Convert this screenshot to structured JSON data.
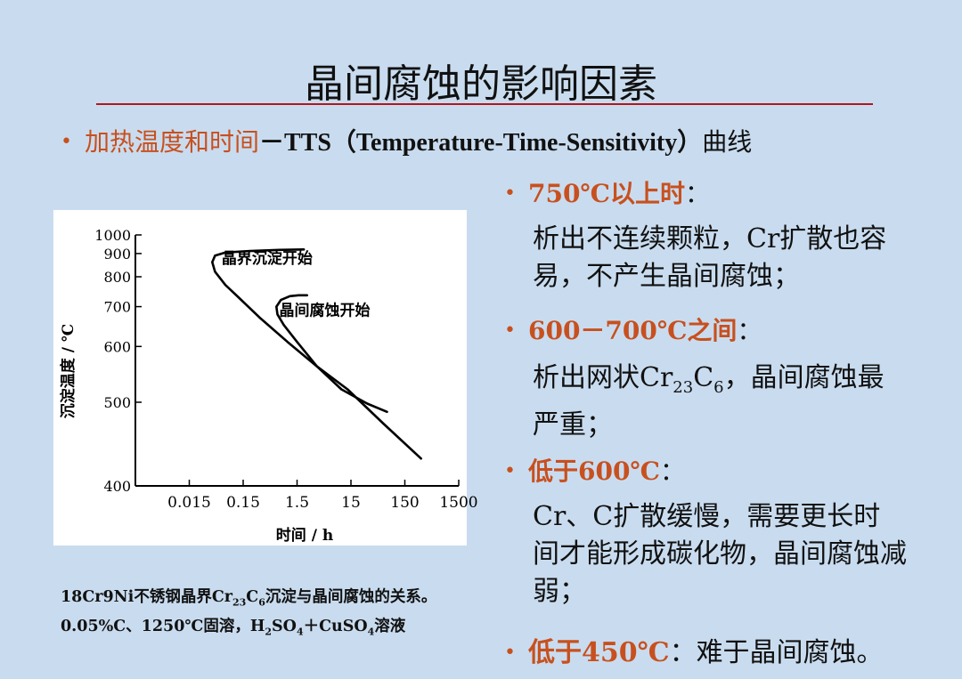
{
  "title": "晶间腐蚀的影响因素",
  "subtitle": {
    "bullet": "•",
    "red": "加热温度和时间",
    "black": "－TTS（Temperature-Time-Sensitivity）",
    "tail": "曲线"
  },
  "items": [
    {
      "bullet": "•",
      "head": "750℃以上时",
      "colon": "：",
      "text": "析出不连续颗粒，Cr扩散也容易，不产生晶间腐蚀；"
    },
    {
      "bullet": "•",
      "head": "600－700℃之间",
      "colon": "：",
      "text_a": "析出网状Cr",
      "sub_a": "23",
      "text_b": "C",
      "sub_b": "6",
      "text_c": "，晶间腐蚀最严重；"
    },
    {
      "bullet": "•",
      "head": "低于600℃",
      "colon": "：",
      "text": "Cr、C扩散缓慢，需要更长时间才能形成碳化物，晶间腐蚀减弱；"
    },
    {
      "bullet": "•",
      "head": "低于450℃",
      "colon": "：",
      "text": "难于晶间腐蚀。"
    }
  ],
  "caption": {
    "a": "18Cr9Ni不锈钢晶界Cr",
    "sub1": "23",
    "b": "C",
    "sub2": "6",
    "c": "沉淀与晶间腐蚀的关系。0.05%C、1250℃固溶，H",
    "sub3": "2",
    "d": "SO",
    "sub4": "4",
    "e": "＋CuSO",
    "sub5": "4",
    "f": "溶液"
  },
  "chart_data": {
    "type": "line",
    "xlabel": "时间 / h",
    "ylabel": "沉淀温度 / ℃",
    "x_scale": "log",
    "y_scale": "reciprocal",
    "x_ticks": [
      0.015,
      0.15,
      1.5,
      15,
      150,
      1500
    ],
    "x_tick_labels": [
      "0.015",
      "0.15",
      "1.5",
      "15",
      "150",
      "1500"
    ],
    "y_ticks": [
      400,
      500,
      600,
      700,
      800,
      900,
      1000
    ],
    "y_tick_labels": [
      "400",
      "500",
      "600",
      "700",
      "800",
      "900",
      "1000"
    ],
    "xlim": [
      0.0015,
      1500
    ],
    "ylim": [
      400,
      1000
    ],
    "grid": false,
    "series": [
      {
        "name": "晶界沉淀开始",
        "points": [
          [
            2.0,
            920
          ],
          [
            0.7,
            918
          ],
          [
            0.2,
            912
          ],
          [
            0.07,
            905
          ],
          [
            0.045,
            890
          ],
          [
            0.04,
            860
          ],
          [
            0.045,
            820
          ],
          [
            0.07,
            770
          ],
          [
            0.12,
            730
          ],
          [
            0.3,
            670
          ],
          [
            1.0,
            610
          ],
          [
            3.5,
            560
          ],
          [
            13,
            520
          ],
          [
            60,
            470
          ],
          [
            300,
            428
          ]
        ]
      },
      {
        "name": "晶间腐蚀开始",
        "points": [
          [
            2.3,
            735
          ],
          [
            1.6,
            735
          ],
          [
            1.1,
            732
          ],
          [
            0.75,
            720
          ],
          [
            0.62,
            700
          ],
          [
            0.65,
            678
          ],
          [
            0.85,
            650
          ],
          [
            1.5,
            610
          ],
          [
            3.5,
            560
          ],
          [
            10,
            520
          ],
          [
            30,
            498
          ],
          [
            70,
            486
          ]
        ]
      }
    ]
  }
}
